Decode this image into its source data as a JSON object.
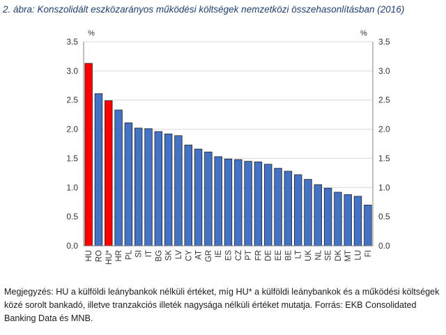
{
  "title": "2. ábra: Konszolidált eszközarányos működési költségek nemzetközi összehasonlításban (2016)",
  "note": "Megjegyzés: HU a külföldi leánybankok nélküli értéket, míg HU* a külföldi leánybankok és a működési költségek közé sorolt bankadó, illetve tranzakciós illeték nagysága nélküli értéket mutatja. Forrás: EKB Consolidated Banking Data és MNB.",
  "chart_data": {
    "type": "bar",
    "title": "",
    "xlabel": "",
    "ylabel_left": "%",
    "ylabel_right": "%",
    "ylim": [
      0,
      3.5
    ],
    "yticks": [
      "0.0",
      "0.5",
      "1.0",
      "1.5",
      "2.0",
      "2.5",
      "3.0",
      "3.5"
    ],
    "grid": "horizontal",
    "categories": [
      "HU",
      "RO",
      "HU*",
      "HR",
      "PL",
      "SI",
      "IT",
      "BG",
      "SK",
      "LV",
      "CY",
      "AT",
      "GR",
      "IE",
      "ES",
      "CZ",
      "PT",
      "FR",
      "DE",
      "EE",
      "BE",
      "LT",
      "UK",
      "NL",
      "SE",
      "DK",
      "MT",
      "LU",
      "FI"
    ],
    "values": [
      3.13,
      2.61,
      2.49,
      2.33,
      2.11,
      2.02,
      2.01,
      1.96,
      1.92,
      1.89,
      1.73,
      1.66,
      1.61,
      1.53,
      1.49,
      1.48,
      1.45,
      1.44,
      1.4,
      1.33,
      1.28,
      1.22,
      1.14,
      1.05,
      0.99,
      0.92,
      0.88,
      0.85,
      0.7
    ],
    "highlight": [
      "HU",
      "HU*"
    ],
    "colors": {
      "bar": "#4472c4",
      "highlight": "#ff0000",
      "bar_edge": "#1f1f1f",
      "grid": "#d9d9d9"
    }
  }
}
